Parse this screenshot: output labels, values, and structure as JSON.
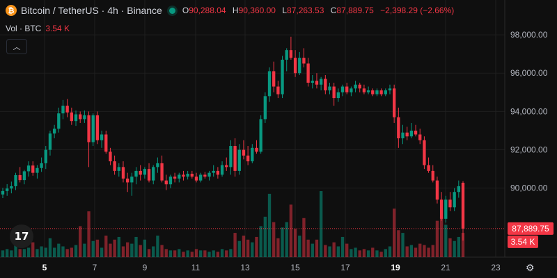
{
  "header": {
    "symbol_title": "Bitcoin / TetherUS · 4h · Binance",
    "logo_glyph": "₿",
    "ohlc": {
      "open_label": "O",
      "open": "90,288.04",
      "high_label": "H",
      "high": "90,360.00",
      "low_label": "L",
      "low": "87,263.53",
      "close_label": "C",
      "close": "87,889.75",
      "change": "−2,398.29 (−2.66%)"
    },
    "volume_label": "Vol · BTC",
    "volume_value": "3.54 K",
    "collapse_icon": "chevron-up-icon"
  },
  "price_badge": {
    "price": "87,889.75",
    "volume": "3.54 K"
  },
  "colors": {
    "up": "#089981",
    "down": "#f23645",
    "bg": "#0f0f0f",
    "grid": "#1f1f1f"
  },
  "chart_data": {
    "type": "candlestick",
    "y_ticks": [
      "98,000.00",
      "96,000.00",
      "94,000.00",
      "92,000.00",
      "90,000.00"
    ],
    "y_tick_values": [
      98000,
      96000,
      94000,
      92000,
      90000
    ],
    "ylim": [
      86400,
      98800
    ],
    "x_ticks": [
      "5",
      "7",
      "9",
      "11",
      "13",
      "15",
      "17",
      "19",
      "21",
      "23"
    ],
    "x_ticks_bold": [
      "5",
      "19"
    ],
    "grid": true,
    "last_price": 87889.75,
    "candles": [
      [
        89670,
        90010,
        89480,
        89850
      ],
      [
        89850,
        90210,
        89600,
        89980
      ],
      [
        89980,
        90340,
        89730,
        90100
      ],
      [
        90100,
        90800,
        89900,
        90680
      ],
      [
        90680,
        91100,
        90300,
        90420
      ],
      [
        90420,
        90950,
        90200,
        90880
      ],
      [
        90880,
        91400,
        90600,
        91180
      ],
      [
        91180,
        91400,
        90650,
        90800
      ],
      [
        90800,
        91200,
        90500,
        91050
      ],
      [
        91050,
        91600,
        90850,
        91300
      ],
      [
        91300,
        92200,
        91000,
        92000
      ],
      [
        92000,
        93000,
        91700,
        92850
      ],
      [
        92850,
        93300,
        92600,
        93100
      ],
      [
        93100,
        94200,
        92900,
        93900
      ],
      [
        93900,
        94600,
        93600,
        94300
      ],
      [
        94300,
        94650,
        93700,
        93950
      ],
      [
        93950,
        94200,
        93300,
        93500
      ],
      [
        93500,
        94050,
        93250,
        93850
      ],
      [
        93850,
        94000,
        93400,
        93600
      ],
      [
        93600,
        94050,
        93400,
        93800
      ],
      [
        93800,
        94000,
        91100,
        92400
      ],
      [
        92400,
        93900,
        92200,
        93800
      ],
      [
        93800,
        94000,
        92300,
        92500
      ],
      [
        92500,
        93000,
        92100,
        92800
      ],
      [
        92800,
        93000,
        91800,
        91900
      ],
      [
        91900,
        92100,
        91200,
        91400
      ],
      [
        91400,
        91700,
        90700,
        90900
      ],
      [
        90900,
        91300,
        90600,
        91100
      ],
      [
        91100,
        91400,
        90300,
        90500
      ],
      [
        90500,
        90800,
        89800,
        90300
      ],
      [
        90300,
        90800,
        89600,
        90600
      ],
      [
        90600,
        91100,
        90200,
        90900
      ],
      [
        90900,
        91200,
        90400,
        90700
      ],
      [
        90700,
        91100,
        90500,
        91000
      ],
      [
        91000,
        91300,
        90300,
        90400
      ],
      [
        90400,
        91200,
        90200,
        91100
      ],
      [
        91100,
        91600,
        90800,
        91300
      ],
      [
        91300,
        91700,
        90300,
        90400
      ],
      [
        90400,
        90700,
        89900,
        90200
      ],
      [
        90200,
        90700,
        90000,
        90600
      ],
      [
        90600,
        90800,
        90300,
        90500
      ],
      [
        90500,
        90800,
        90300,
        90700
      ],
      [
        90700,
        90900,
        90400,
        90600
      ],
      [
        90600,
        90900,
        90450,
        90750
      ],
      [
        90750,
        90900,
        90500,
        90600
      ],
      [
        90600,
        90800,
        90300,
        90400
      ],
      [
        90400,
        90800,
        90300,
        90700
      ],
      [
        90700,
        90850,
        90500,
        90600
      ],
      [
        90600,
        90900,
        90400,
        90800
      ],
      [
        90800,
        91200,
        90600,
        90900
      ],
      [
        90900,
        91100,
        90500,
        90700
      ],
      [
        90700,
        91400,
        90600,
        91200
      ],
      [
        91200,
        91600,
        90900,
        91100
      ],
      [
        91100,
        92500,
        90700,
        92200
      ],
      [
        92200,
        92600,
        90600,
        90900
      ],
      [
        90900,
        92300,
        90700,
        92000
      ],
      [
        92000,
        92500,
        91500,
        91700
      ],
      [
        91700,
        92200,
        91200,
        91400
      ],
      [
        91400,
        92300,
        91300,
        92100
      ],
      [
        92100,
        92500,
        91800,
        91900
      ],
      [
        91900,
        93800,
        91800,
        93600
      ],
      [
        93600,
        95000,
        93400,
        94800
      ],
      [
        94800,
        96300,
        94500,
        96100
      ],
      [
        96100,
        96600,
        95000,
        95300
      ],
      [
        95300,
        95600,
        94700,
        94900
      ],
      [
        94900,
        96900,
        94700,
        96700
      ],
      [
        96700,
        97300,
        96100,
        97200
      ],
      [
        97200,
        97900,
        96700,
        96800
      ],
      [
        96800,
        97200,
        95800,
        96000
      ],
      [
        96000,
        97100,
        95900,
        96800
      ],
      [
        96800,
        97300,
        96300,
        96500
      ],
      [
        96500,
        96800,
        95300,
        95500
      ],
      [
        95500,
        95900,
        95200,
        95600
      ],
      [
        95600,
        96000,
        95200,
        95400
      ],
      [
        95400,
        95800,
        95100,
        95700
      ],
      [
        95700,
        95900,
        94900,
        95100
      ],
      [
        95100,
        95500,
        94900,
        95300
      ],
      [
        95300,
        95500,
        94300,
        94700
      ],
      [
        94700,
        95200,
        94500,
        95000
      ],
      [
        95000,
        95400,
        94800,
        95300
      ],
      [
        95300,
        95500,
        94900,
        95000
      ],
      [
        95000,
        95300,
        94800,
        95200
      ],
      [
        95200,
        95600,
        95000,
        95400
      ],
      [
        95400,
        95500,
        95000,
        95200
      ],
      [
        95200,
        95400,
        94900,
        95000
      ],
      [
        95000,
        95300,
        94900,
        95100
      ],
      [
        95100,
        95200,
        94800,
        94900
      ],
      [
        94900,
        95200,
        94800,
        95100
      ],
      [
        95100,
        95200,
        94800,
        94900
      ],
      [
        94900,
        95200,
        94800,
        95100
      ],
      [
        95100,
        95400,
        94900,
        95200
      ],
      [
        95200,
        95400,
        93400,
        93700
      ],
      [
        93700,
        94200,
        92100,
        92600
      ],
      [
        92600,
        93300,
        92300,
        92900
      ],
      [
        92900,
        93200,
        92500,
        92700
      ],
      [
        92700,
        93400,
        92600,
        93000
      ],
      [
        93000,
        93300,
        92700,
        92800
      ],
      [
        92800,
        93100,
        92300,
        92500
      ],
      [
        92500,
        92700,
        91000,
        91200
      ],
      [
        91200,
        91600,
        90800,
        90900
      ],
      [
        90900,
        91200,
        90300,
        90400
      ],
      [
        90400,
        90600,
        89200,
        89400
      ],
      [
        89400,
        89800,
        88300,
        88400
      ],
      [
        88400,
        89600,
        88200,
        89400
      ],
      [
        89400,
        89800,
        88800,
        89000
      ],
      [
        89000,
        90000,
        88800,
        89800
      ],
      [
        89800,
        90400,
        89500,
        90100
      ],
      [
        90280,
        90360,
        87260,
        87890
      ]
    ],
    "volumes": [
      0.5,
      0.6,
      0.5,
      0.9,
      0.6,
      0.6,
      0.7,
      1.1,
      0.6,
      0.8,
      0.7,
      1.4,
      0.7,
      1.0,
      0.8,
      0.6,
      0.7,
      0.9,
      2.3,
      1.0,
      3.4,
      1.2,
      1.3,
      0.7,
      1.6,
      1.0,
      1.3,
      1.5,
      0.8,
      1.1,
      1.0,
      1.5,
      0.9,
      1.3,
      0.6,
      0.8,
      1.6,
      0.9,
      0.6,
      0.5,
      0.5,
      0.6,
      0.4,
      0.5,
      0.4,
      0.6,
      0.5,
      0.5,
      0.4,
      0.5,
      0.4,
      0.6,
      0.5,
      0.6,
      1.8,
      1.2,
      1.6,
      1.3,
      1.1,
      1.5,
      2.3,
      3.0,
      4.7,
      2.6,
      1.4,
      2.2,
      2.6,
      3.9,
      2.1,
      1.6,
      2.9,
      1.3,
      1.0,
      1.3,
      4.9,
      0.9,
      0.8,
      1.1,
      0.8,
      1.5,
      1.0,
      0.6,
      0.7,
      0.5,
      0.6,
      0.5,
      0.7,
      0.5,
      0.4,
      0.6,
      0.8,
      3.6,
      2.0,
      1.8,
      0.8,
      0.9,
      0.7,
      1.0,
      0.9,
      0.7,
      0.9,
      2.7,
      3.0,
      2.4,
      1.4,
      1.2,
      1.5,
      1.8
    ]
  }
}
